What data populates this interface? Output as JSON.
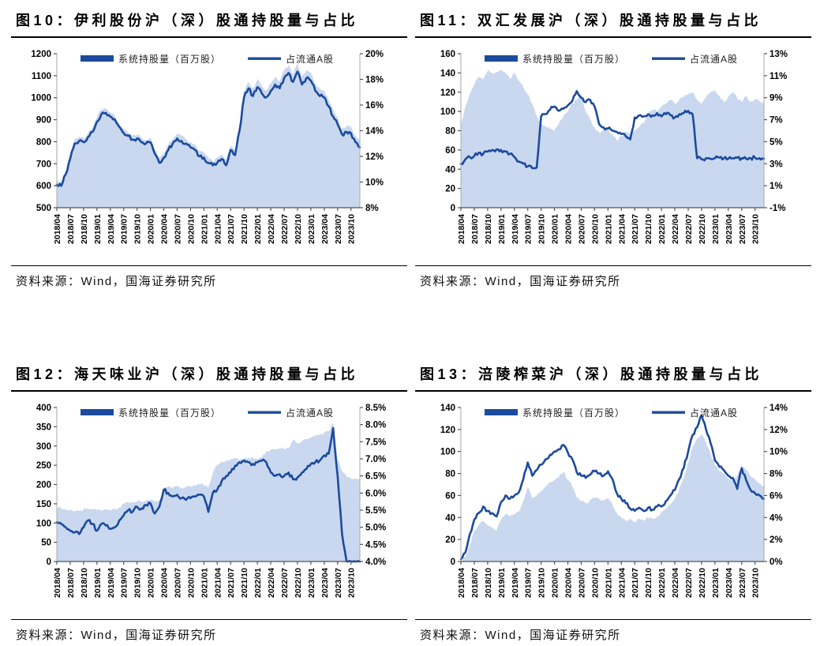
{
  "report": {
    "source_label": "资料来源：Wind，国海证券研究所"
  },
  "colors": {
    "line": "#1c4b9e",
    "area": "#c9d8ef",
    "axis_line": "#a9a9a9",
    "axis_dark": "#555555",
    "tick_text": "#000000",
    "legend_text": "#222222"
  },
  "x_months": [
    "2018/04",
    "2018/05",
    "2018/06",
    "2018/07",
    "2018/08",
    "2018/09",
    "2018/10",
    "2018/11",
    "2018/12",
    "2019/01",
    "2019/02",
    "2019/03",
    "2019/04",
    "2019/05",
    "2019/06",
    "2019/07",
    "2019/08",
    "2019/09",
    "2019/10",
    "2019/11",
    "2019/12",
    "2020/01",
    "2020/02",
    "2020/03",
    "2020/04",
    "2020/05",
    "2020/06",
    "2020/07",
    "2020/08",
    "2020/09",
    "2020/10",
    "2020/11",
    "2020/12",
    "2021/01",
    "2021/02",
    "2021/03",
    "2021/04",
    "2021/05",
    "2021/06",
    "2021/07",
    "2021/08",
    "2021/09",
    "2021/10",
    "2021/11",
    "2021/12",
    "2022/01",
    "2022/02",
    "2022/03",
    "2022/04",
    "2022/05",
    "2022/06",
    "2022/07",
    "2022/08",
    "2022/09",
    "2022/10",
    "2022/11",
    "2022/12",
    "2023/01",
    "2023/02",
    "2023/03",
    "2023/04",
    "2023/05",
    "2023/06",
    "2023/07",
    "2023/08",
    "2023/09",
    "2023/10",
    "2023/11",
    "2023/12"
  ],
  "x_tick_labels": [
    "2018/04",
    "2018/07",
    "2018/10",
    "2019/01",
    "2019/04",
    "2019/07",
    "2019/10",
    "2020/01",
    "2020/04",
    "2020/07",
    "2020/10",
    "2021/01",
    "2021/04",
    "2021/07",
    "2021/10",
    "2022/01",
    "2022/04",
    "2022/07",
    "2022/10",
    "2023/01",
    "2023/04",
    "2023/07",
    "2023/10"
  ],
  "chart_data": [
    {
      "type": "line+area",
      "title": "图10：伊利股份沪（深）股通持股量与占比",
      "left_axis": {
        "min": 500,
        "max": 1200,
        "ticks": [
          500,
          600,
          700,
          800,
          900,
          1000,
          1100,
          1200
        ]
      },
      "right_axis": {
        "min": 8,
        "max": 20,
        "tick_values": [
          8,
          10,
          12,
          14,
          16,
          18,
          20
        ],
        "tick_labels": [
          "8%",
          "10%",
          "12%",
          "14%",
          "16%",
          "18%",
          "20%"
        ]
      },
      "series": [
        {
          "name": "系统持股量（百万股）",
          "style": "area",
          "axis": "left",
          "values": [
            625,
            620,
            668,
            738,
            810,
            825,
            815,
            840,
            865,
            910,
            948,
            950,
            935,
            918,
            882,
            858,
            842,
            828,
            832,
            818,
            808,
            820,
            765,
            728,
            748,
            788,
            812,
            838,
            828,
            812,
            798,
            788,
            758,
            752,
            728,
            712,
            728,
            742,
            718,
            782,
            762,
            875,
            1030,
            1072,
            1042,
            1085,
            1055,
            1035,
            1065,
            1095,
            1075,
            1125,
            1148,
            1105,
            1155,
            1095,
            1125,
            1115,
            1065,
            1042,
            1032,
            990,
            945,
            910,
            858,
            872,
            868,
            828,
            800
          ]
        },
        {
          "name": "占流通A股",
          "style": "line",
          "axis": "right",
          "values": [
            9.8,
            9.7,
            10.6,
            11.8,
            13.0,
            13.2,
            13.1,
            13.5,
            13.9,
            14.7,
            15.3,
            15.4,
            15.1,
            14.9,
            14.3,
            13.8,
            13.6,
            13.3,
            13.4,
            13.1,
            13.0,
            13.1,
            12.2,
            11.5,
            11.9,
            12.5,
            13.0,
            13.4,
            13.2,
            13.0,
            12.7,
            12.5,
            12.0,
            11.9,
            11.5,
            11.3,
            11.5,
            11.8,
            11.3,
            12.5,
            12.1,
            14.0,
            16.6,
            17.3,
            16.7,
            17.4,
            16.9,
            16.6,
            17.1,
            17.6,
            17.3,
            18.1,
            18.5,
            17.8,
            18.6,
            17.6,
            18.1,
            17.9,
            17.1,
            16.7,
            16.6,
            15.9,
            15.1,
            14.5,
            13.7,
            13.9,
            13.8,
            13.1,
            12.7
          ]
        }
      ]
    },
    {
      "type": "line+area",
      "title": "图11：双汇发展沪（深）股通持股量与占比",
      "left_axis": {
        "min": 0,
        "max": 160,
        "ticks": [
          0,
          20,
          40,
          60,
          80,
          100,
          120,
          140,
          160
        ]
      },
      "right_axis": {
        "min": -1,
        "max": 13,
        "tick_values": [
          -1,
          1,
          3,
          5,
          7,
          9,
          11,
          13
        ],
        "tick_labels": [
          "-1%",
          "1%",
          "3%",
          "5%",
          "7%",
          "9%",
          "11%",
          "13%"
        ]
      },
      "series": [
        {
          "name": "系统持股量（百万股）",
          "style": "area",
          "axis": "left",
          "values": [
            85,
            105,
            118,
            128,
            136,
            133,
            142,
            140,
            141,
            143,
            140,
            134,
            140,
            132,
            125,
            118,
            108,
            95,
            88,
            85,
            82,
            80,
            88,
            95,
            100,
            108,
            112,
            118,
            100,
            92,
            83,
            78,
            80,
            82,
            76,
            70,
            74,
            79,
            77,
            80,
            84,
            88,
            98,
            102,
            100,
            105,
            108,
            112,
            108,
            112,
            115,
            118,
            120,
            112,
            108,
            115,
            120,
            122,
            116,
            110,
            115,
            120,
            114,
            110,
            116,
            110,
            113,
            110,
            108
          ]
        },
        {
          "name": "占流通A股",
          "style": "line",
          "axis": "right",
          "values": [
            3.0,
            3.4,
            3.6,
            3.7,
            4.0,
            3.9,
            4.1,
            4.25,
            4.3,
            4.25,
            4.1,
            3.9,
            3.6,
            3.2,
            3.0,
            2.75,
            2.6,
            2.65,
            7.3,
            7.5,
            7.9,
            8.2,
            7.8,
            8.0,
            8.3,
            8.7,
            9.6,
            9.0,
            8.6,
            8.8,
            8.2,
            6.6,
            6.3,
            6.2,
            6.0,
            5.9,
            5.7,
            5.5,
            5.2,
            7.2,
            7.4,
            7.3,
            7.5,
            7.4,
            7.6,
            7.3,
            7.5,
            7.4,
            7.2,
            7.5,
            7.6,
            7.8,
            7.5,
            3.5,
            3.4,
            3.5,
            3.45,
            3.5,
            3.55,
            3.5,
            3.45,
            3.5,
            3.55,
            3.5,
            3.45,
            3.5,
            3.55,
            3.5,
            3.45
          ]
        }
      ]
    },
    {
      "type": "line+area",
      "title": "图12：海天味业沪（深）股通持股量与占比",
      "left_axis": {
        "min": 0,
        "max": 400,
        "ticks": [
          0,
          50,
          100,
          150,
          200,
          250,
          300,
          350,
          400
        ]
      },
      "right_axis": {
        "min": 4.0,
        "max": 8.5,
        "tick_values": [
          4.0,
          4.5,
          5.0,
          5.5,
          6.0,
          6.5,
          7.0,
          7.5,
          8.0,
          8.5
        ],
        "tick_labels": [
          "4.0%",
          "4.5%",
          "5.0%",
          "5.5%",
          "6.0%",
          "6.5%",
          "7.0%",
          "7.5%",
          "8.0%",
          "8.5%"
        ]
      },
      "series": [
        {
          "name": "系统持股量（百万股）",
          "style": "area",
          "axis": "left",
          "values": [
            140,
            138,
            135,
            133,
            130,
            132,
            135,
            138,
            136,
            134,
            132,
            135,
            133,
            136,
            140,
            150,
            155,
            153,
            157,
            155,
            158,
            160,
            155,
            158,
            190,
            195,
            192,
            195,
            190,
            192,
            195,
            198,
            200,
            198,
            192,
            230,
            252,
            258,
            262,
            266,
            268,
            265,
            268,
            270,
            268,
            266,
            270,
            285,
            290,
            292,
            295,
            292,
            295,
            315,
            308,
            312,
            318,
            322,
            326,
            330,
            335,
            338,
            360,
            265,
            235,
            220,
            215,
            214,
            215
          ]
        },
        {
          "name": "占流通A股",
          "style": "line",
          "axis": "right",
          "values": [
            5.15,
            5.1,
            5.0,
            4.9,
            4.85,
            4.8,
            5.0,
            5.2,
            5.1,
            4.9,
            5.1,
            5.05,
            4.95,
            5.0,
            5.2,
            5.35,
            5.5,
            5.45,
            5.6,
            5.55,
            5.65,
            5.7,
            5.4,
            5.6,
            6.1,
            6.0,
            5.9,
            5.95,
            5.85,
            5.8,
            5.85,
            5.9,
            5.95,
            5.9,
            5.45,
            6.0,
            6.1,
            6.35,
            6.5,
            6.6,
            6.8,
            6.9,
            6.95,
            6.9,
            6.85,
            6.9,
            6.95,
            6.9,
            6.6,
            6.5,
            6.55,
            6.5,
            6.6,
            6.4,
            6.45,
            6.6,
            6.7,
            6.85,
            6.9,
            6.95,
            7.1,
            7.15,
            7.9,
            6.5,
            4.8,
            4.0,
            3.95,
            4.0,
            3.95
          ]
        }
      ]
    },
    {
      "type": "line+area",
      "title": "图13：涪陵榨菜沪（深）股通持股量与占比",
      "left_axis": {
        "min": 0,
        "max": 140,
        "ticks": [
          0,
          20,
          40,
          60,
          80,
          100,
          120,
          140
        ]
      },
      "right_axis": {
        "min": 0,
        "max": 14,
        "tick_values": [
          0,
          2,
          4,
          6,
          8,
          10,
          12,
          14
        ],
        "tick_labels": [
          "0%",
          "2%",
          "4%",
          "6%",
          "8%",
          "10%",
          "12%",
          "14%"
        ]
      },
      "series": [
        {
          "name": "系统持股量（百万股）",
          "style": "area",
          "axis": "left",
          "values": [
            1,
            4,
            15,
            28,
            33,
            37,
            33,
            31,
            28,
            38,
            43,
            41,
            43,
            45,
            55,
            68,
            57,
            60,
            64,
            68,
            72,
            74,
            77,
            82,
            74,
            68,
            58,
            55,
            53,
            56,
            58,
            57,
            55,
            58,
            52,
            44,
            40,
            37,
            39,
            36,
            39,
            37,
            40,
            39,
            41,
            45,
            48,
            52,
            57,
            66,
            76,
            90,
            104,
            112,
            116,
            108,
            98,
            88,
            82,
            80,
            76,
            74,
            78,
            85,
            83,
            78,
            74,
            71,
            69
          ]
        },
        {
          "name": "占流通A股",
          "style": "line",
          "axis": "right",
          "values": [
            0.2,
            0.8,
            2.5,
            3.8,
            4.4,
            5.0,
            4.6,
            4.4,
            4.1,
            5.4,
            6.0,
            5.7,
            6.0,
            6.3,
            7.5,
            9.0,
            7.8,
            8.3,
            8.8,
            9.3,
            9.7,
            10.0,
            10.2,
            10.6,
            9.9,
            9.3,
            8.1,
            7.8,
            7.6,
            7.9,
            8.2,
            8.0,
            7.8,
            8.2,
            7.5,
            6.2,
            5.7,
            5.3,
            4.8,
            4.6,
            4.9,
            4.6,
            4.9,
            4.7,
            5.0,
            5.0,
            5.5,
            6.0,
            6.5,
            7.5,
            8.5,
            10.0,
            11.5,
            12.2,
            13.3,
            12.0,
            10.8,
            9.2,
            8.6,
            8.3,
            7.8,
            7.6,
            6.6,
            8.5,
            7.4,
            6.5,
            6.2,
            6.0,
            5.7
          ]
        }
      ]
    }
  ]
}
